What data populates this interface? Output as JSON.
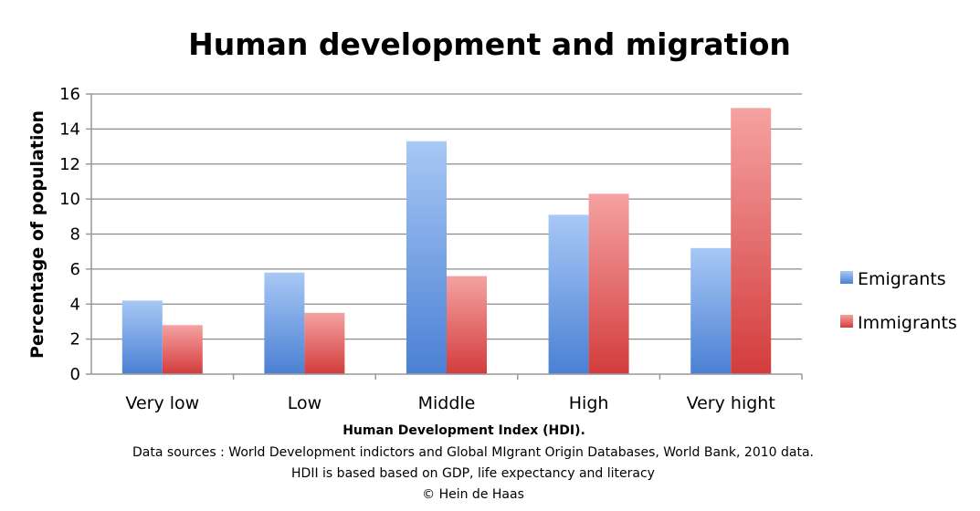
{
  "chart_data": {
    "type": "bar",
    "title": "Human development and migration",
    "xlabel": "Human Development Index (HDI).",
    "ylabel": "Percentage of population",
    "ylim": [
      0,
      16
    ],
    "yticks": [
      0,
      2,
      4,
      6,
      8,
      10,
      12,
      14,
      16
    ],
    "grid": true,
    "legend_position": "right",
    "categories": [
      "Very low",
      "Low",
      "Middle",
      "High",
      "Very hight"
    ],
    "series": [
      {
        "name": "Emigrants",
        "values": [
          4.2,
          5.8,
          13.3,
          9.1,
          7.2
        ],
        "color": "#5b8fd9"
      },
      {
        "name": "Immigrants",
        "values": [
          2.8,
          3.5,
          5.6,
          10.3,
          15.2
        ],
        "color": "#d94545"
      }
    ],
    "notes": [
      "Data sources :  World Development indictors and  Global MIgrant Origin Databases, World Bank, 2010 data.",
      "HDII is based based on GDP, life expectancy and literacy",
      "© Hein de Haas"
    ]
  }
}
